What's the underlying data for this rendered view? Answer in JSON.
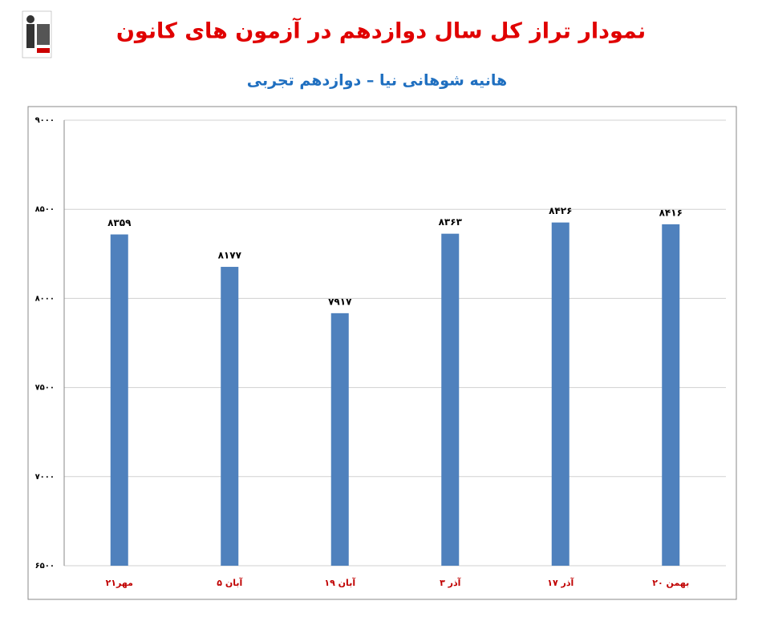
{
  "chart_data": {
    "type": "bar",
    "title": "نمودار تراز کل سال دوازدهم در آزمون های کانون",
    "subtitle": "هانیه شوهانی نیا – دوازدهم تجربی",
    "categories": [
      "۲۱مهر",
      "۵ آبان",
      "۱۹ آبان",
      "۳ آذر",
      "۱۷ آذر",
      "۲۰ بهمن"
    ],
    "values": [
      8359,
      8177,
      7917,
      8363,
      8426,
      8416
    ],
    "value_labels": [
      "۸۳۵۹",
      "۸۱۷۷",
      "۷۹۱۷",
      "۸۳۶۳",
      "۸۴۲۶",
      "۸۴۱۶"
    ],
    "color": "#4f81bd",
    "ylim": [
      6500,
      9000
    ],
    "yticks": [
      {
        "value": 6500,
        "label": "۶۵۰۰"
      },
      {
        "value": 7000,
        "label": "۷۰۰۰"
      },
      {
        "value": 7500,
        "label": "۷۵۰۰"
      },
      {
        "value": 8000,
        "label": "۸۰۰۰"
      },
      {
        "value": 8500,
        "label": "۸۵۰۰"
      },
      {
        "value": 9000,
        "label": "۹۰۰۰"
      }
    ],
    "grid": true
  }
}
